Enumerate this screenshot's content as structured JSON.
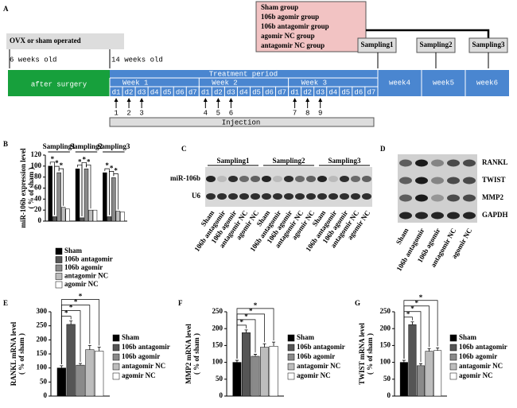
{
  "panel_labels": [
    "A",
    "B",
    "C",
    "D",
    "E",
    "F",
    "G"
  ],
  "timeline": {
    "group_box": [
      "Sham group",
      "106b agomir group",
      "106b antagomir group",
      "agomir NC group",
      "antagomir NC group"
    ],
    "surgery": "OVX or sham operated",
    "age_start": "6 weeks old",
    "age_treat": "14 weeks old",
    "after_surgery": "after surgery",
    "treatment": "Treatment period",
    "weeks": [
      "Week 1",
      "Week 2",
      "Week 3"
    ],
    "days": [
      "d1",
      "d2",
      "d3",
      "d4",
      "d5",
      "d6",
      "d7"
    ],
    "later_weeks": [
      "week4",
      "week5",
      "week6"
    ],
    "sampling": [
      "Sampling1",
      "Sampling2",
      "Sampling3"
    ],
    "injection_numbers": [
      "1",
      "2",
      "3",
      "4",
      "5",
      "6",
      "7",
      "8",
      "9"
    ],
    "injection": "Injection"
  },
  "blot_c": {
    "groups": [
      "Sampling1",
      "Sampling2",
      "Sampling3"
    ],
    "rows": [
      "miR-106b",
      "U6"
    ],
    "lanes": [
      "Sham",
      "106b antagomir",
      "106b agomir",
      "antagomir NC",
      "agomir NC",
      "Sham",
      "106b antagomir",
      "106b agomir",
      "antagomir NC",
      "agomir NC",
      "Sham",
      "106b antagomir",
      "106b agomir",
      "antagomir NC",
      "agomir NC"
    ]
  },
  "blot_d": {
    "rows": [
      "RANKL",
      "TWIST",
      "MMP2",
      "GAPDH"
    ],
    "lanes": [
      "Sham",
      "106b antagomir",
      "106b agomir",
      "antagomir NC",
      "agomir NC"
    ]
  },
  "significance": "*",
  "chart_data": [
    {
      "type": "bar",
      "ylabel": [
        "miR-106b expression level",
        "( % of sham )"
      ],
      "categories": [
        "Sampling1",
        "Sampling2",
        "Sampling3"
      ],
      "series": [
        {
          "name": "Sham",
          "color": "#000000",
          "values": [
            100,
            95,
            88
          ]
        },
        {
          "name": "106b antagomir",
          "color": "#555555",
          "values": [
            8,
            6,
            8
          ]
        },
        {
          "name": "106b agomir",
          "color": "#8a8a8a",
          "values": [
            88,
            95,
            79
          ]
        },
        {
          "name": "antagomir NC",
          "color": "#bdbdbd",
          "values": [
            25,
            20,
            18
          ]
        },
        {
          "name": "agomir NC",
          "color": "#ffffff",
          "values": [
            22,
            20,
            17
          ]
        }
      ],
      "ylim": [
        0,
        120
      ],
      "yticks": [
        0,
        20,
        40,
        60,
        80,
        100,
        120
      ],
      "legend": "bottom"
    },
    {
      "type": "bar",
      "ylabel": [
        "RANKL mRNA level",
        "( % of sham )"
      ],
      "categories": [
        null
      ],
      "series": [
        {
          "name": "Sham",
          "color": "#000000",
          "values": [
            100
          ],
          "errors": [
            8
          ]
        },
        {
          "name": "106b antagomir",
          "color": "#555555",
          "values": [
            255
          ],
          "errors": [
            12
          ]
        },
        {
          "name": "106b agomir",
          "color": "#8a8a8a",
          "values": [
            110
          ],
          "errors": [
            6
          ]
        },
        {
          "name": "antagomir NC",
          "color": "#bdbdbd",
          "values": [
            165
          ],
          "errors": [
            15
          ]
        },
        {
          "name": "agomir NC",
          "color": "#ffffff",
          "values": [
            160
          ],
          "errors": [
            14
          ]
        }
      ],
      "ylim": [
        0,
        300
      ],
      "yticks": [
        0,
        50,
        100,
        150,
        200,
        250,
        300
      ],
      "legend": "right"
    },
    {
      "type": "bar",
      "ylabel": [
        "MMP2 mRNA level",
        "( % of sham )"
      ],
      "categories": [
        null
      ],
      "series": [
        {
          "name": "Sham",
          "color": "#000000",
          "values": [
            100
          ],
          "errors": [
            6
          ]
        },
        {
          "name": "106b antagomir",
          "color": "#555555",
          "values": [
            188
          ],
          "errors": [
            8
          ]
        },
        {
          "name": "106b agomir",
          "color": "#8a8a8a",
          "values": [
            118
          ],
          "errors": [
            6
          ]
        },
        {
          "name": "antagomir NC",
          "color": "#bdbdbd",
          "values": [
            145
          ],
          "errors": [
            10
          ]
        },
        {
          "name": "agomir NC",
          "color": "#ffffff",
          "values": [
            148
          ],
          "errors": [
            12
          ]
        }
      ],
      "ylim": [
        0,
        250
      ],
      "yticks": [
        0,
        50,
        100,
        150,
        200,
        250
      ],
      "legend": "right"
    },
    {
      "type": "bar",
      "ylabel": [
        "TWIST mRNA level",
        "( % of sham )"
      ],
      "categories": [
        null
      ],
      "series": [
        {
          "name": "Sham",
          "color": "#000000",
          "values": [
            100
          ],
          "errors": [
            6
          ]
        },
        {
          "name": "106b antagomir",
          "color": "#555555",
          "values": [
            212
          ],
          "errors": [
            8
          ]
        },
        {
          "name": "106b agomir",
          "color": "#8a8a8a",
          "values": [
            90
          ],
          "errors": [
            6
          ]
        },
        {
          "name": "antagomir NC",
          "color": "#bdbdbd",
          "values": [
            133
          ],
          "errors": [
            8
          ]
        },
        {
          "name": "agomir NC",
          "color": "#ffffff",
          "values": [
            135
          ],
          "errors": [
            8
          ]
        }
      ],
      "ylim": [
        0,
        250
      ],
      "yticks": [
        0,
        50,
        100,
        150,
        200,
        250
      ],
      "legend": "right"
    }
  ]
}
